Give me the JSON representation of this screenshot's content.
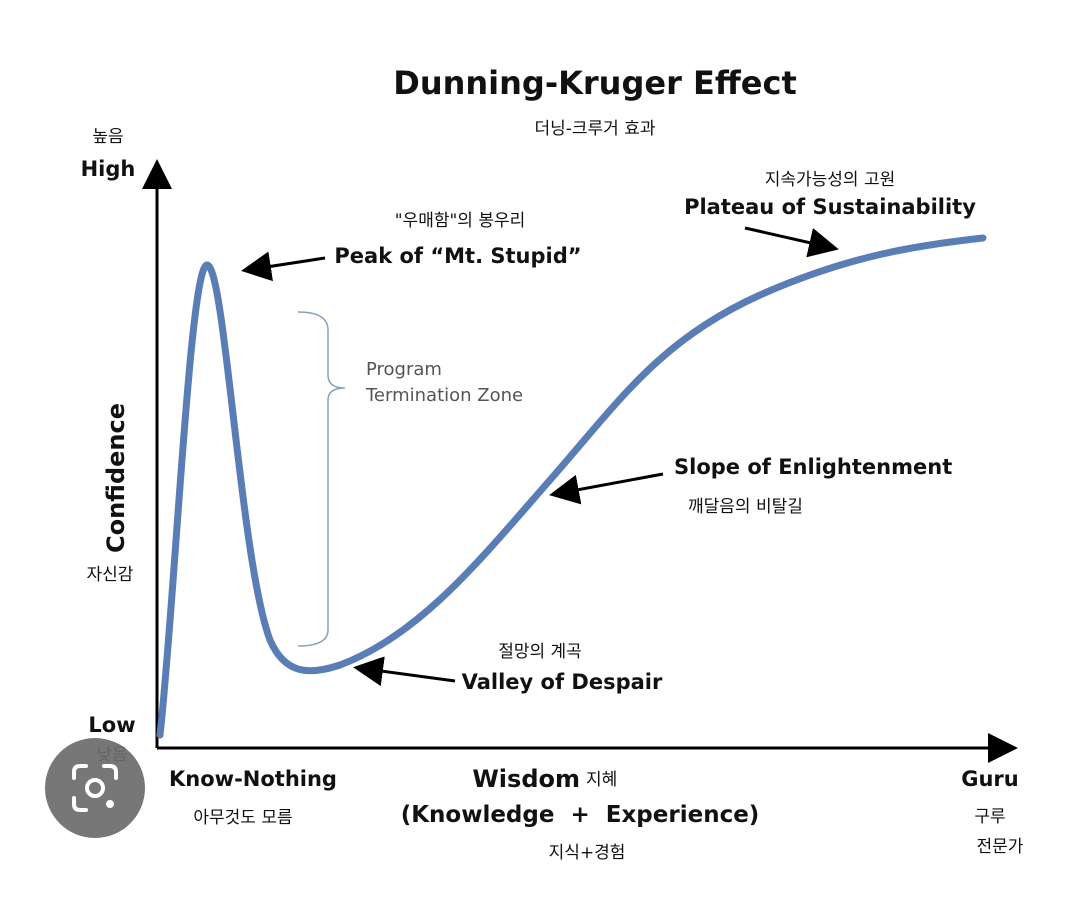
{
  "title": "Dunning-Kruger Effect",
  "subtitle": "더닝-크루거 효과",
  "y_axis": {
    "high_ko": "높음",
    "high": "High",
    "label": "Confidence",
    "label_ko": "자신감",
    "low": "Low",
    "low_ko": "낮음"
  },
  "x_axis": {
    "start": "Know-Nothing",
    "start_ko": "아무것도 모름",
    "label": "Wisdom",
    "label_ko": "지혜",
    "sub": "(Knowledge  +  Experience)",
    "sub_ko": "지식+경험",
    "end": "Guru",
    "end_ko": "구루",
    "end_ko2": "전문가"
  },
  "annotations": {
    "peak": {
      "ko": "\"우매함\"의 봉우리",
      "en": "Peak of “Mt. Stupid”"
    },
    "zone": {
      "line1": "Program",
      "line2": "Termination Zone"
    },
    "slope": {
      "en": "Slope of Enlightenment",
      "ko": "깨달음의 비탈길"
    },
    "valley": {
      "ko": "절망의 계곡",
      "en": "Valley of Despair"
    },
    "plateau": {
      "ko": "지속가능성의 고원",
      "en": "Plateau of Sustainability"
    }
  }
}
